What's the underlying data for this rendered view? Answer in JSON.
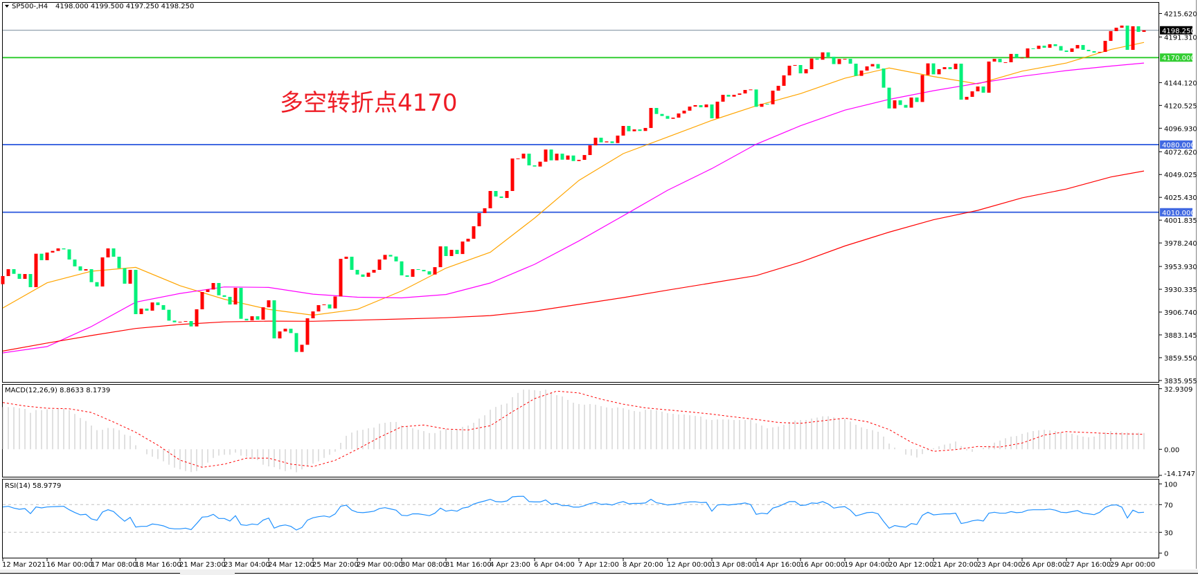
{
  "window": {
    "symbol_label": "SP500-,H4",
    "ohlc_label": "4198.000 4199.500 4197.250 4198.250",
    "dropdown_icon": "triangle-down-icon"
  },
  "annotation": {
    "text": "多空转折点4170",
    "color": "#ee1c25"
  },
  "indicators": {
    "macd_label": "MACD(12,26,9) 8.8633 8.1739",
    "rsi_label": "RSI(14) 58.9779"
  },
  "colors": {
    "up_candle": "#ff0000",
    "down_candle": "#00f07a",
    "ma_fast": "#ffa500",
    "ma_mid": "#ff00ff",
    "ma_slow": "#ff0000",
    "level_green": "#32cd32",
    "level_blue": "#4169e1",
    "bid_line": "#778899",
    "macd_hist": "#c0c0c0",
    "macd_signal": "#ff0000",
    "rsi_line": "#1e90ff",
    "rsi_levels": "#c0c0c0"
  },
  "chart_data": [
    {
      "type": "candlestick",
      "title": "SP500-,H4",
      "price_axis_labels": [
        "4215.620",
        "4191.310",
        "4144.120",
        "4120.525",
        "4096.930",
        "4072.620",
        "4049.025",
        "4025.430",
        "4001.835",
        "3978.240",
        "3953.930",
        "3930.335",
        "3906.740",
        "3883.145",
        "3859.550",
        "3835.955"
      ],
      "ylim": [
        3835.955,
        4215.62
      ],
      "time_labels": [
        "12 Mar 2021",
        "16 Mar 00:00",
        "17 Mar 08:00",
        "18 Mar 16:00",
        "21 Mar 23:00",
        "23 Mar 04:00",
        "24 Mar 12:00",
        "25 Mar 20:00",
        "29 Mar 00:00",
        "30 Mar 08:00",
        "31 Mar 16:00",
        "4 Apr 23:00",
        "6 Apr 04:00",
        "7 Apr 12:00",
        "8 Apr 20:00",
        "12 Apr 00:00",
        "13 Apr 08:00",
        "14 Apr 16:00",
        "16 Apr 00:00",
        "19 Apr 04:00",
        "20 Apr 12:00",
        "21 Apr 20:00",
        "23 Apr 04:00",
        "26 Apr 08:00",
        "27 Apr 16:00",
        "29 Apr 00:00"
      ],
      "first_open": 3935.6,
      "close": [
        3944.0,
        3951.1,
        3946.3,
        3941.1,
        3946.1,
        3932.5,
        3967.1,
        3960.4,
        3968.3,
        3970.0,
        3972.6,
        3971.6,
        3961.1,
        3954.0,
        3949.7,
        3951.1,
        3937.7,
        3933.2,
        3963.3,
        3972.6,
        3964.0,
        3952.1,
        3936.1,
        3950.4,
        3904.6,
        3910.3,
        3908.2,
        3916.7,
        3913.9,
        3909.1,
        3897.9,
        3896.2,
        3896.7,
        3897.4,
        3891.9,
        3909.6,
        3927.5,
        3930.1,
        3936.8,
        3924.1,
        3922.5,
        3914.6,
        3931.8,
        3899.8,
        3898.1,
        3902.4,
        3898.9,
        3911.7,
        3918.9,
        3879.5,
        3886.7,
        3889.5,
        3885.0,
        3865.5,
        3872.9,
        3900.3,
        3907.4,
        3913.9,
        3914.6,
        3910.5,
        3922.9,
        3961.8,
        3964.0,
        3950.4,
        3945.6,
        3943.2,
        3947.5,
        3950.4,
        3961.1,
        3965.9,
        3964.2,
        3959.2,
        3944.7,
        3943.2,
        3951.1,
        3950.4,
        3948.9,
        3945.6,
        3953.2,
        3974.7,
        3964.7,
        3971.1,
        3966.8,
        3979.7,
        3982.6,
        3995.5,
        4009.1,
        4014.1,
        4032.0,
        4026.3,
        4024.8,
        4032.0,
        4065.6,
        4065.6,
        4070.6,
        4058.5,
        4057.3,
        4062.3,
        4074.9,
        4063.7,
        4070.6,
        4064.4,
        4068.7,
        4063.0,
        4064.2,
        4069.2,
        4079.2,
        4087.1,
        4082.3,
        4083.3,
        4081.6,
        4089.3,
        4099.3,
        4093.8,
        4095.7,
        4094.1,
        4097.2,
        4117.9,
        4111.7,
        4109.6,
        4106.7,
        4107.9,
        4112.2,
        4115.1,
        4119.3,
        4120.8,
        4118.6,
        4121.5,
        4107.2,
        4124.4,
        4131.5,
        4129.6,
        4131.5,
        4132.9,
        4136.5,
        4137.0,
        4119.1,
        4122.2,
        4121.7,
        4135.8,
        4140.8,
        4151.6,
        4161.6,
        4162.3,
        4153.7,
        4158.0,
        4169.0,
        4167.8,
        4175.4,
        4170.9,
        4163.3,
        4168.5,
        4168.7,
        4163.7,
        4151.1,
        4156.6,
        4160.9,
        4163.3,
        4158.7,
        4138.9,
        4117.4,
        4125.8,
        4121.0,
        4118.2,
        4128.7,
        4124.1,
        4152.0,
        4164.0,
        4152.7,
        4158.0,
        4160.1,
        4158.0,
        4163.7,
        4126.5,
        4129.4,
        4135.1,
        4140.1,
        4133.7,
        4165.9,
        4168.7,
        4165.2,
        4165.2,
        4173.8,
        4169.9,
        4169.9,
        4179.5,
        4179.0,
        4182.3,
        4180.2,
        4183.8,
        4181.9,
        4177.3,
        4175.9,
        4179.5,
        4183.0,
        4178.0,
        4176.6,
        4175.2,
        4175.9,
        4187.3,
        4197.4,
        4200.9,
        4203.1,
        4178.0,
        4202.4,
        4196.6,
        4198.25
      ],
      "moving_averages_at_time_labels_and_last_bar": {
        "fast": [
          3911,
          3937,
          3949,
          3953,
          3934,
          3920,
          3909.5,
          3903.5,
          3909.6,
          3928.6,
          3952.2,
          3968.6,
          4004,
          4043,
          4070.7,
          4087.8,
          4105.0,
          4120.1,
          4132.7,
          4148.6,
          4159.2,
          4150.4,
          4142.8,
          4156,
          4164.4,
          4178.3,
          4185.7
        ],
        "mid": [
          3864.5,
          3871,
          3891.8,
          3917,
          3926,
          3932.7,
          3932.2,
          3925.3,
          3922.1,
          3921.4,
          3924.9,
          3936.8,
          3956.1,
          3980.3,
          4006.4,
          4032.7,
          4055.2,
          4080.4,
          4099.5,
          4115.6,
          4126.8,
          4135.7,
          4143.4,
          4150.7,
          4156.6,
          4161.2,
          4164.4
        ],
        "slow": [
          3866.4,
          3874.7,
          3882.5,
          3889.8,
          3893.9,
          3896.6,
          3897.4,
          3897.2,
          3898.4,
          3899.6,
          3900.9,
          3903.1,
          3907.8,
          3914.7,
          3921.7,
          3929.4,
          3936.9,
          3944.5,
          3958.4,
          3975.1,
          3989.4,
          4002.2,
          4012,
          4024.9,
          4034,
          4046.5,
          4052.7
        ]
      },
      "levels": [
        {
          "price": 4198.25,
          "label": "4198.250",
          "kind": "bid"
        },
        {
          "price": 4170.0,
          "label": "4170.000",
          "kind": "green"
        },
        {
          "price": 4080.0,
          "label": "4080.000",
          "kind": "blue"
        },
        {
          "price": 4010.0,
          "label": "4010.000",
          "kind": "blue"
        }
      ]
    },
    {
      "type": "bar",
      "name": "MACD(12,26,9)",
      "axis_labels": [
        "32.9309",
        "0.00",
        "-14.1747"
      ],
      "ylim": [
        -14.1747,
        32.9309
      ],
      "histogram": [
        22.9,
        22.9,
        22.9,
        22.3,
        21.9,
        19.8,
        21.3,
        21.3,
        21.7,
        21.7,
        22.3,
        22.1,
        21.3,
        19.2,
        17.0,
        15.4,
        12.9,
        10.4,
        10.6,
        11.6,
        11.4,
        10.4,
        7.9,
        7.3,
        2.2,
        0,
        -2.7,
        -4.0,
        -5.3,
        -6.5,
        -8.4,
        -10.0,
        -10.9,
        -11.8,
        -12.4,
        -11.8,
        -9.7,
        -7.2,
        -4.7,
        -3.4,
        -3.0,
        -3.0,
        -1.8,
        -3.4,
        -4.0,
        -5.3,
        -5.9,
        -8.4,
        -9.3,
        -9.7,
        -10.9,
        -11.8,
        -10.9,
        -12.5,
        -10.9,
        -9.0,
        -7.8,
        -6.5,
        -4.7,
        -3.0,
        -1.3,
        3.5,
        7.3,
        9.1,
        10.2,
        10.6,
        11.4,
        11.8,
        13.9,
        14.4,
        14.8,
        14.8,
        12.9,
        12.2,
        11.4,
        10.6,
        9.9,
        8.8,
        8.8,
        10.2,
        11.0,
        11.0,
        11.0,
        12.2,
        12.9,
        14.4,
        16.7,
        18.5,
        21.5,
        23.0,
        24.2,
        24.9,
        28.3,
        30.6,
        32.4,
        32.4,
        32.1,
        31.7,
        32.4,
        31.0,
        29.4,
        28.7,
        26.8,
        25.3,
        24.6,
        24.2,
        24.6,
        24.2,
        23.4,
        22.7,
        22.3,
        22.7,
        22.3,
        21.5,
        20.8,
        20.4,
        21.5,
        21.5,
        21.2,
        20.4,
        19.6,
        19.3,
        18.9,
        18.9,
        18.5,
        18.1,
        17.8,
        16.2,
        15.9,
        16.2,
        16.2,
        16.2,
        15.9,
        15.9,
        15.9,
        16.0,
        14.1,
        12.9,
        11.4,
        11.9,
        12.3,
        13.3,
        14.8,
        15.6,
        15.9,
        15.9,
        16.7,
        17.2,
        17.9,
        17.9,
        17.3,
        16.7,
        16.4,
        15.1,
        13.3,
        11.9,
        11.0,
        10.4,
        9.5,
        6.9,
        3.1,
        0.9,
        0,
        -2.9,
        -3.4,
        -4.5,
        -2.6,
        -0.6,
        0.6,
        1.6,
        2.5,
        3.1,
        4.2,
        1.7,
        -0.6,
        -1.4,
        0,
        0.8,
        2.0,
        3.6,
        4.7,
        6.0,
        6.9,
        7.2,
        8.4,
        9.2,
        9.9,
        10.3,
        10.6,
        10.3,
        9.9,
        9.1,
        8.8,
        8.4,
        7.6,
        6.9,
        6.5,
        6.9,
        8.4,
        9.1,
        9.9,
        9.4,
        9.2,
        9.1,
        9.1,
        9.0,
        8.8633
      ],
      "signal_every_4_bars_and_last": [
        25.4,
        23.5,
        22.3,
        22.0,
        20.0,
        14.8,
        9.2,
        2.2,
        -5.9,
        -9.8,
        -8.1,
        -4.8,
        -4.8,
        -8.1,
        -9.4,
        -6.0,
        0.0,
        6.5,
        12.2,
        13.2,
        11.0,
        10.5,
        12.8,
        20.4,
        27.5,
        31.6,
        30.6,
        27.2,
        24.5,
        22.5,
        21.4,
        20.3,
        19.1,
        17.6,
        16.2,
        14.6,
        14.1,
        15.5,
        16.9,
        15.0,
        10.7,
        3.8,
        -1.1,
        -0.2,
        1.5,
        1.2,
        3.4,
        7.7,
        9.6,
        9.1,
        8.5,
        8.3,
        8.1739
      ]
    },
    {
      "type": "line",
      "name": "RSI(14)",
      "axis_labels": [
        "100",
        "70",
        "30",
        "0"
      ],
      "ylim": [
        0,
        100
      ],
      "levels": [
        70,
        30
      ],
      "values": [
        66.6,
        67.6,
        65,
        63.3,
        64.3,
        57,
        66.6,
        65.3,
        66.6,
        67,
        67.3,
        67.6,
        62.6,
        58.6,
        55.3,
        56,
        49.3,
        47.3,
        59.3,
        62.6,
        60,
        52.6,
        46,
        51.6,
        37.6,
        38.6,
        38.6,
        42,
        41,
        39.3,
        36,
        35,
        35,
        36,
        33.9,
        42.6,
        52,
        52.6,
        56,
        50,
        50,
        46.3,
        54,
        41,
        40,
        42,
        41,
        47.6,
        50.6,
        36,
        39.3,
        40.6,
        38.6,
        33.3,
        37,
        47.6,
        51,
        52.6,
        53.6,
        52,
        56.6,
        67.6,
        69.3,
        62,
        59,
        58.4,
        59.3,
        60.5,
        64.4,
        65.6,
        63.8,
        62,
        54.6,
        54,
        56.7,
        56.7,
        55.5,
        54,
        57.6,
        65,
        60.5,
        62,
        60.5,
        65,
        66.4,
        70.9,
        73.3,
        75.3,
        77.7,
        74.4,
        73.9,
        75.3,
        81.3,
        81.9,
        82.1,
        74.4,
        73.9,
        73.9,
        76.8,
        70.6,
        71.8,
        68.5,
        68.8,
        66.4,
        66.4,
        68.5,
        71.5,
        73.3,
        70.3,
        70.9,
        69.4,
        72.4,
        74.4,
        71.2,
        71.8,
        71.8,
        72.4,
        77.7,
        72.7,
        71.5,
        69.4,
        70.3,
        71.5,
        73,
        73.9,
        74.1,
        73,
        73.3,
        60.5,
        69.4,
        70.3,
        69.4,
        70.3,
        71.2,
        72.4,
        70,
        56,
        57.6,
        56.7,
        65,
        67.3,
        70.9,
        74.4,
        74.4,
        68.8,
        69.4,
        72.4,
        71.8,
        74.4,
        70.9,
        65,
        66.4,
        67,
        62,
        53.7,
        56,
        58.4,
        59,
        56.7,
        45.7,
        35.9,
        39.8,
        38.3,
        37.4,
        42.7,
        41.3,
        54.6,
        59,
        55.2,
        56,
        56.7,
        56.7,
        57.6,
        42.7,
        44.2,
        46.6,
        47.8,
        46.3,
        57.6,
        59,
        57.6,
        57.6,
        59.9,
        58.4,
        59,
        62,
        62.6,
        62.6,
        62.6,
        63.5,
        62,
        59,
        58.4,
        59.9,
        61.4,
        57.6,
        56.7,
        55.5,
        59,
        65.9,
        69.1,
        69.7,
        66.4,
        50.7,
        62,
        58.4,
        58.9779
      ]
    }
  ]
}
